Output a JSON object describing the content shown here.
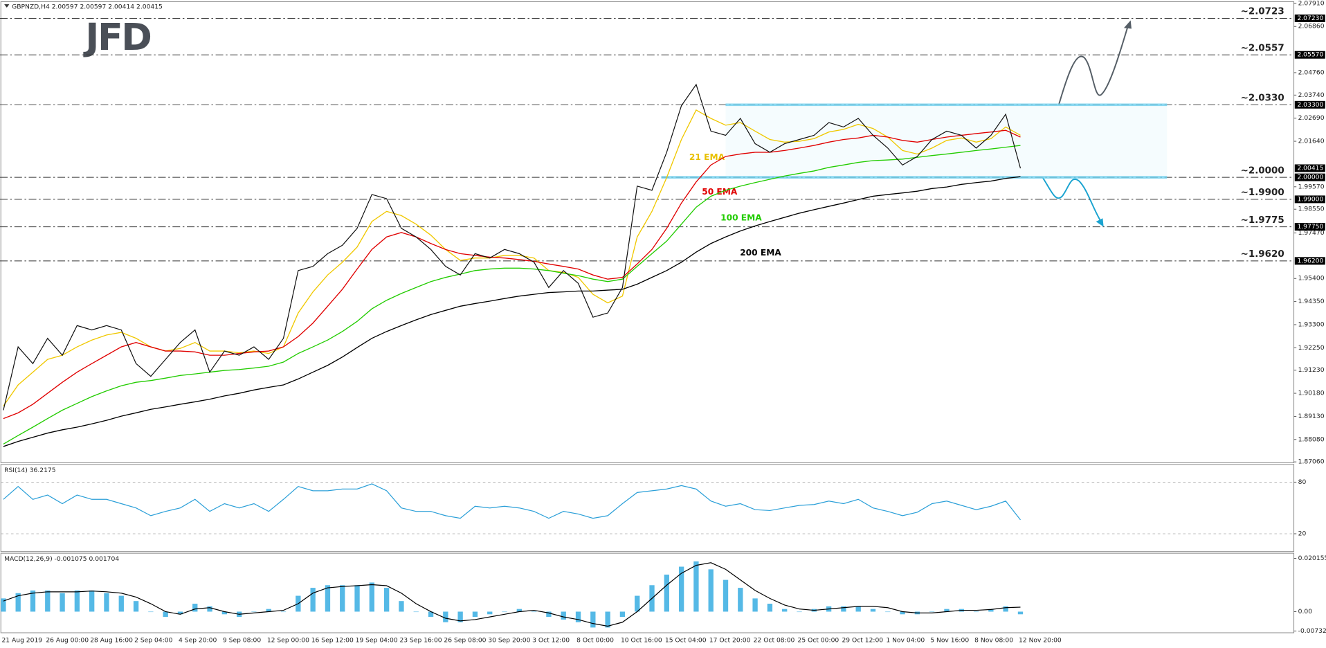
{
  "logo": "JFD",
  "chart_data": [
    {
      "type": "line",
      "title": "GBPNZD,H4  2.00597 2.00597 2.00414 2.00415",
      "categories": [
        "21 Aug 2019",
        null,
        null,
        "26 Aug 00:00",
        null,
        null,
        "28 Aug 16:00",
        null,
        null,
        "2 Sep 04:00",
        null,
        null,
        "4 Sep 20:00",
        null,
        null,
        "9 Sep 08:00",
        null,
        null,
        "12 Sep 00:00",
        null,
        null,
        "16 Sep 12:00",
        null,
        null,
        "19 Sep 04:00",
        null,
        null,
        "23 Sep 16:00",
        null,
        null,
        "26 Sep 08:00",
        null,
        null,
        "30 Sep 20:00",
        null,
        null,
        "3 Oct 12:00",
        null,
        null,
        "8 Oct 00:00",
        null,
        null,
        "10 Oct 16:00",
        null,
        null,
        "15 Oct 04:00",
        null,
        null,
        "17 Oct 20:00",
        null,
        null,
        "22 Oct 08:00",
        null,
        null,
        "25 Oct 00:00",
        null,
        null,
        "29 Oct 12:00",
        null,
        null,
        "1 Nov 04:00",
        null,
        null,
        "5 Nov 16:00",
        null,
        null,
        "8 Nov 08:00",
        null,
        null,
        "12 Nov 20:00"
      ],
      "values": [
        1.8941,
        1.9229,
        1.9153,
        1.9268,
        1.9191,
        1.9326,
        1.9306,
        1.9326,
        1.9306,
        1.9153,
        1.9095,
        1.9172,
        1.9249,
        1.9306,
        1.9114,
        1.921,
        1.9191,
        1.9229,
        1.9172,
        1.9268,
        1.9576,
        1.9595,
        1.9653,
        1.9691,
        1.9768,
        1.9922,
        1.9903,
        1.9768,
        1.9729,
        1.9672,
        1.9595,
        1.9556,
        1.9653,
        1.9633,
        1.9672,
        1.9653,
        1.9614,
        1.9499,
        1.9576,
        1.9518,
        1.9364,
        1.9383,
        1.9499,
        1.996,
        1.9941,
        2.0114,
        2.0326,
        2.0422,
        2.021,
        2.0191,
        2.0268,
        2.0153,
        2.0114,
        2.0153,
        2.0172,
        2.0191,
        2.0249,
        2.0229,
        2.0268,
        2.0191,
        2.0133,
        2.0056,
        2.0095,
        2.0172,
        2.021,
        2.0191,
        2.0133,
        2.0191,
        2.0287,
        2.0041
      ],
      "color": "#111111",
      "series": [
        {
          "name": "21 EMA",
          "color": "#f0c800",
          "values": [
            1.896,
            1.9056,
            1.9114,
            1.9172,
            1.9191,
            1.9229,
            1.926,
            1.9283,
            1.9295,
            1.9268,
            1.9229,
            1.921,
            1.9222,
            1.9249,
            1.921,
            1.921,
            1.9202,
            1.921,
            1.9199,
            1.9229,
            1.9383,
            1.9479,
            1.9556,
            1.9614,
            1.9683,
            1.9799,
            1.9845,
            1.9826,
            1.9787,
            1.9737,
            1.9672,
            1.9622,
            1.9633,
            1.9633,
            1.9645,
            1.9645,
            1.9633,
            1.9576,
            1.9568,
            1.9545,
            1.9468,
            1.9429,
            1.946,
            1.9729,
            1.9845,
            1.9999,
            2.0172,
            2.0306,
            2.0268,
            2.0237,
            2.0249,
            2.021,
            2.0172,
            2.016,
            2.0164,
            2.0176,
            2.0206,
            2.0218,
            2.0241,
            2.0222,
            2.0183,
            2.0122,
            2.0106,
            2.0133,
            2.0168,
            2.0179,
            2.016,
            2.0176,
            2.0229,
            2.0191
          ]
        },
        {
          "name": "50 EMA",
          "color": "#e00000",
          "values": [
            1.8903,
            1.8929,
            1.8968,
            1.9018,
            1.9068,
            1.9114,
            1.9153,
            1.9191,
            1.9229,
            1.9249,
            1.9229,
            1.921,
            1.921,
            1.9206,
            1.9191,
            1.9191,
            1.9199,
            1.9206,
            1.921,
            1.9229,
            1.9276,
            1.9337,
            1.9414,
            1.9491,
            1.9583,
            1.9672,
            1.9729,
            1.9749,
            1.9729,
            1.9699,
            1.9672,
            1.9653,
            1.9645,
            1.9637,
            1.9633,
            1.9626,
            1.9618,
            1.9606,
            1.9595,
            1.9583,
            1.9556,
            1.9537,
            1.9545,
            1.9606,
            1.9672,
            1.9768,
            1.9883,
            1.9979,
            2.0056,
            2.0095,
            2.0106,
            2.0114,
            2.0114,
            2.0122,
            2.0133,
            2.0145,
            2.016,
            2.0172,
            2.0179,
            2.0191,
            2.0183,
            2.0168,
            2.016,
            2.0172,
            2.0183,
            2.0191,
            2.0199,
            2.0206,
            2.0214,
            2.0183
          ]
        },
        {
          "name": "100 EMA",
          "color": "#22cc00",
          "values": [
            1.8787,
            1.8826,
            1.8864,
            1.8903,
            1.8941,
            1.8972,
            1.9003,
            1.9029,
            1.9052,
            1.9068,
            1.9076,
            1.9087,
            1.9099,
            1.9106,
            1.9114,
            1.9122,
            1.9126,
            1.9133,
            1.9141,
            1.916,
            1.9199,
            1.9229,
            1.926,
            1.9299,
            1.9345,
            1.9402,
            1.9441,
            1.9472,
            1.9499,
            1.9526,
            1.9545,
            1.956,
            1.9576,
            1.9583,
            1.9587,
            1.9587,
            1.9583,
            1.9576,
            1.9564,
            1.9553,
            1.9537,
            1.9526,
            1.9537,
            1.9595,
            1.9653,
            1.971,
            1.9787,
            1.9864,
            1.9914,
            1.9941,
            1.996,
            1.9976,
            1.9991,
            2.0006,
            2.0018,
            2.0029,
            2.0045,
            2.0056,
            2.0068,
            2.0076,
            2.0079,
            2.0083,
            2.0091,
            2.0099,
            2.0106,
            2.0114,
            2.0122,
            2.0129,
            2.0137,
            2.0145
          ]
        },
        {
          "name": "200 EMA",
          "color": "#000000",
          "values": [
            1.8776,
            1.8799,
            1.8818,
            1.8837,
            1.8852,
            1.8864,
            1.8879,
            1.8895,
            1.8914,
            1.8929,
            1.8945,
            1.8956,
            1.8968,
            1.8979,
            1.8991,
            1.9006,
            1.9018,
            1.9033,
            1.9045,
            1.9056,
            1.9083,
            1.9114,
            1.9145,
            1.9183,
            1.9226,
            1.9268,
            1.9299,
            1.9326,
            1.9352,
            1.9376,
            1.9395,
            1.9414,
            1.9426,
            1.9437,
            1.9449,
            1.946,
            1.9468,
            1.9476,
            1.9479,
            1.9483,
            1.9483,
            1.9487,
            1.9491,
            1.9514,
            1.9545,
            1.9576,
            1.9614,
            1.966,
            1.9699,
            1.9729,
            1.9756,
            1.9779,
            1.9799,
            1.9818,
            1.9837,
            1.9853,
            1.9868,
            1.9883,
            1.9899,
            1.9914,
            1.9922,
            1.9929,
            1.9937,
            1.9949,
            1.9956,
            1.9968,
            1.9976,
            1.9983,
            1.9995,
            2.0003
          ]
        }
      ],
      "ylim": [
        1.8706,
        2.0791
      ],
      "yticks": [
        {
          "value": 2.0791,
          "label": "2.07910"
        },
        {
          "value": 2.0686,
          "label": "2.06860"
        },
        {
          "value": 2.0476,
          "label": "2.04760"
        },
        {
          "value": 2.0374,
          "label": "2.03740"
        },
        {
          "value": 2.0269,
          "label": "2.02690"
        },
        {
          "value": 2.0164,
          "label": "2.01640"
        },
        {
          "value": 1.9957,
          "label": "1.99570"
        },
        {
          "value": 1.9855,
          "label": "1.98550"
        },
        {
          "value": 1.9747,
          "label": "1.97470"
        },
        {
          "value": 1.954,
          "label": "1.95400"
        },
        {
          "value": 1.9435,
          "label": "1.94350"
        },
        {
          "value": 1.933,
          "label": "1.93300"
        },
        {
          "value": 1.9225,
          "label": "1.92250"
        },
        {
          "value": 1.9123,
          "label": "1.91230"
        },
        {
          "value": 1.9018,
          "label": "1.90180"
        },
        {
          "value": 1.8913,
          "label": "1.89130"
        },
        {
          "value": 1.8808,
          "label": "1.88080"
        },
        {
          "value": 1.8706,
          "label": "1.87060"
        }
      ],
      "levels": [
        {
          "value": 2.0723,
          "label": "~2.0723",
          "axis_label": "2.07230",
          "color": "#555555"
        },
        {
          "value": 2.0557,
          "label": "~2.0557",
          "axis_label": "2.05570",
          "color": "#555555"
        },
        {
          "value": 2.033,
          "label": "~2.0330",
          "axis_label": "2.03300",
          "color": "#555555"
        },
        {
          "value": 2.0,
          "label": "~2.0000",
          "axis_label": "2.00000",
          "color": "#1aa3d0"
        },
        {
          "value": 1.99,
          "label": "~1.9900",
          "axis_label": "1.99000",
          "color": "#1aa3d0"
        },
        {
          "value": 1.9775,
          "label": "~1.9775",
          "axis_label": "1.97750",
          "color": "#1aa3d0"
        },
        {
          "value": 1.962,
          "label": "~1.9620",
          "axis_label": "1.96200",
          "color": "#1aa3d0"
        }
      ],
      "last_price": {
        "value": 2.00415,
        "label": "2.00415"
      }
    },
    {
      "type": "line",
      "title": "RSI(14) 36.2175",
      "values": [
        60,
        75,
        60,
        65,
        55,
        65,
        60,
        60,
        55,
        50,
        41,
        46,
        50,
        60,
        46,
        55,
        50,
        55,
        46,
        60,
        75,
        70,
        70,
        72,
        72,
        78,
        70,
        50,
        46,
        46,
        41,
        38,
        52,
        50,
        52,
        50,
        46,
        38,
        46,
        43,
        38,
        41,
        55,
        68,
        70,
        72,
        76,
        72,
        58,
        52,
        55,
        48,
        47,
        50,
        53,
        54,
        58,
        55,
        60,
        50,
        46,
        41,
        45,
        55,
        58,
        53,
        48,
        52,
        58,
        36.2
      ],
      "color": "#2a9fd8",
      "ylim": [
        0,
        100
      ],
      "yticks": [
        20,
        80
      ],
      "grid": true
    },
    {
      "type": "bar",
      "title": "MACD(12,26,9) -0.001075 0.001704",
      "values": [
        0.005,
        0.007,
        0.008,
        0.008,
        0.007,
        0.008,
        0.008,
        0.007,
        0.006,
        0.004,
        0,
        -0.002,
        -0.001,
        0.003,
        0.002,
        -0.001,
        -0.002,
        0,
        0.001,
        0,
        0.006,
        0.009,
        0.01,
        0.01,
        0.01,
        0.011,
        0.009,
        0.004,
        0,
        -0.002,
        -0.004,
        -0.004,
        -0.002,
        -0.001,
        0,
        0.001,
        0,
        -0.002,
        -0.003,
        -0.004,
        -0.006,
        -0.006,
        -0.002,
        0.006,
        0.01,
        0.014,
        0.017,
        0.019,
        0.016,
        0.012,
        0.009,
        0.005,
        0.003,
        0.001,
        0,
        0.001,
        0.002,
        0.002,
        0.002,
        0.001,
        0,
        -0.001,
        -0.001,
        0,
        0.001,
        0.001,
        0,
        0.001,
        0.002,
        -0.001
      ],
      "color": "#55b9e6",
      "signal": [
        0.004,
        0.006,
        0.007,
        0.0075,
        0.0075,
        0.0075,
        0.0078,
        0.0075,
        0.007,
        0.0055,
        0.003,
        0,
        -0.001,
        0.001,
        0.0015,
        0,
        -0.001,
        -0.0005,
        0,
        0.0005,
        0.003,
        0.007,
        0.009,
        0.0095,
        0.0098,
        0.0102,
        0.0098,
        0.007,
        0.003,
        0,
        -0.0025,
        -0.0035,
        -0.003,
        -0.002,
        -0.001,
        0,
        0.0005,
        -0.0005,
        -0.002,
        -0.003,
        -0.0045,
        -0.0055,
        -0.004,
        0,
        0.005,
        0.01,
        0.0145,
        0.0175,
        0.0185,
        0.016,
        0.012,
        0.008,
        0.005,
        0.0025,
        0.001,
        0.0005,
        0.001,
        0.0015,
        0.002,
        0.002,
        0.0015,
        0,
        -0.0005,
        -0.0005,
        0,
        0.0005,
        0.0005,
        0.0008,
        0.0015,
        0.0017
      ],
      "signal_color": "#000000",
      "ylim": [
        -0.00732,
        0.020155
      ],
      "yticks": [
        0.020155,
        {
          "value": 0,
          "label": "0.00"
        },
        -0.00732
      ]
    }
  ]
}
